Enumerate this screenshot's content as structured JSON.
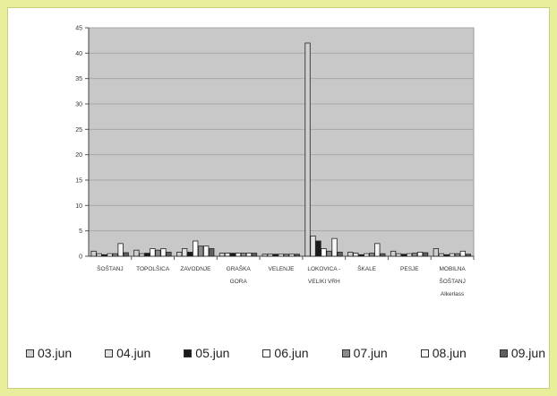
{
  "chart_data": {
    "type": "bar",
    "categories": [
      [
        "ŠOŠTANJ"
      ],
      [
        "TOPOLŠICA"
      ],
      [
        "ZAVODNJE"
      ],
      [
        "GRAŠKA",
        "GORA"
      ],
      [
        "VELENJE"
      ],
      [
        "LOKOVICA -",
        "VELIKI VRH"
      ],
      [
        "ŠKALE"
      ],
      [
        "PESJE"
      ],
      [
        "MOBILNA",
        "ŠOŠTANJ",
        "Alkerlass"
      ]
    ],
    "series": [
      {
        "name": "03.jun",
        "color": "#cfcfcf",
        "values": [
          1.0,
          1.2,
          0.8,
          0.6,
          0.4,
          42.0,
          0.8,
          1.0,
          1.5
        ]
      },
      {
        "name": "04.jun",
        "color": "#e2e2e2",
        "values": [
          0.5,
          0.5,
          1.5,
          0.6,
          0.4,
          4.0,
          0.6,
          0.5,
          0.5
        ]
      },
      {
        "name": "05.jun",
        "color": "#1a1a1a",
        "values": [
          0.3,
          0.6,
          0.8,
          0.6,
          0.4,
          3.0,
          0.3,
          0.4,
          0.3
        ]
      },
      {
        "name": "06.jun",
        "color": "#ffffff",
        "values": [
          0.5,
          1.5,
          3.0,
          0.6,
          0.4,
          1.5,
          0.5,
          0.5,
          0.5
        ]
      },
      {
        "name": "07.jun",
        "color": "#8a8a8a",
        "values": [
          0.5,
          1.2,
          2.0,
          0.6,
          0.4,
          1.0,
          0.6,
          0.6,
          0.5
        ]
      },
      {
        "name": "08.jun",
        "color": "#f6f6f6",
        "values": [
          2.5,
          1.5,
          2.0,
          0.6,
          0.4,
          3.5,
          2.5,
          0.8,
          1.0
        ]
      },
      {
        "name": "09.jun",
        "color": "#5f5f5f",
        "values": [
          0.7,
          0.8,
          1.5,
          0.6,
          0.4,
          0.8,
          0.5,
          0.7,
          0.4
        ]
      }
    ],
    "y_ticks": [
      0,
      5,
      10,
      15,
      20,
      25,
      30,
      35,
      40,
      45
    ],
    "ylim": [
      0,
      45
    ],
    "grid": true,
    "plot_background": "#c8c8c8",
    "legend_position": "bottom"
  }
}
